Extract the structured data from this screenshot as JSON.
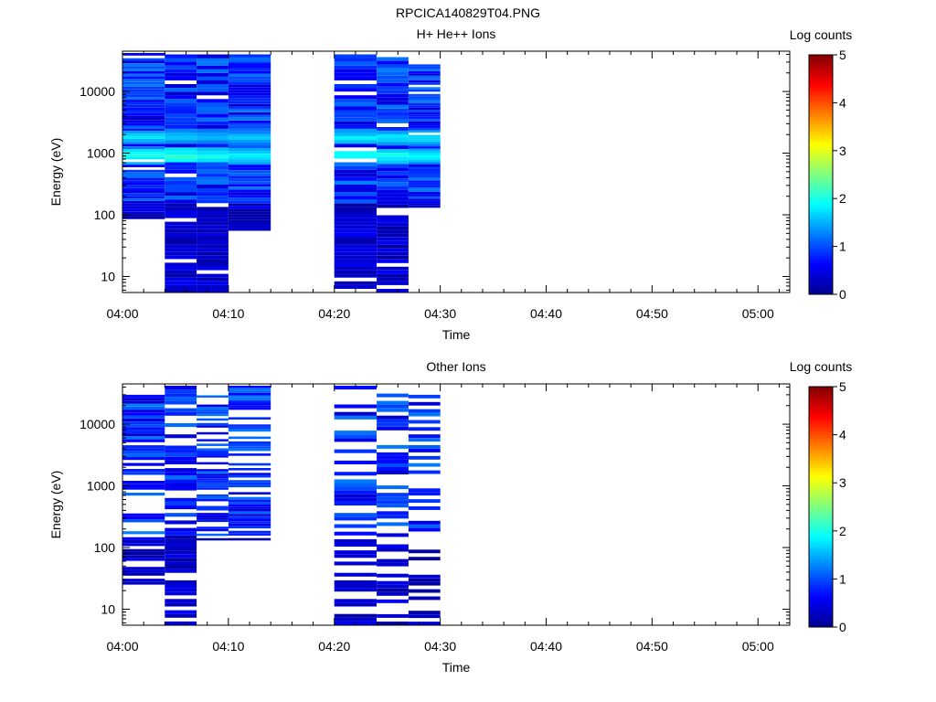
{
  "figure": {
    "title": "RPCICA140829T04.PNG"
  },
  "chart_data": [
    {
      "type": "heatmap",
      "title": "H+ He++ Ions",
      "xlabel": "Time",
      "ylabel": "Energy (eV)",
      "x_range": [
        "04:00",
        "05:03"
      ],
      "x_ticks": [
        "04:00",
        "04:10",
        "04:20",
        "04:30",
        "04:40",
        "04:50",
        "05:00"
      ],
      "y_scale": "log",
      "y_range": [
        5.5,
        45000
      ],
      "y_ticks": [
        "10",
        "100",
        "1000",
        "10000"
      ],
      "colorbar": {
        "label": "Log counts",
        "range": [
          0,
          5
        ],
        "ticks": [
          "0",
          "1",
          "2",
          "3",
          "4",
          "5"
        ]
      },
      "time_bins": [
        {
          "start": "04:00",
          "end": "04:04",
          "data_energy_range": [
            85,
            42000
          ],
          "bands": [
            {
              "energy": 900,
              "value": 1.9
            },
            {
              "energy": 1800,
              "value": 1.6
            },
            {
              "energy": 13000,
              "value": 1.1
            },
            {
              "energy": 110,
              "value": 1.0
            }
          ]
        },
        {
          "start": "04:04",
          "end": "04:07",
          "data_energy_range": [
            5.5,
            40000
          ],
          "bands": [
            {
              "energy": 900,
              "value": 2.0
            },
            {
              "energy": 1800,
              "value": 1.6
            }
          ]
        },
        {
          "start": "04:07",
          "end": "04:10",
          "data_energy_range": [
            5.5,
            40000
          ],
          "bands": [
            {
              "energy": 900,
              "value": 1.9
            },
            {
              "energy": 1800,
              "value": 1.5
            }
          ]
        },
        {
          "start": "04:10",
          "end": "04:14",
          "data_energy_range": [
            55,
            40000
          ],
          "bands": [
            {
              "energy": 900,
              "value": 1.8
            },
            {
              "energy": 1800,
              "value": 1.5
            }
          ]
        },
        {
          "start": "04:20",
          "end": "04:24",
          "data_energy_range": [
            5.5,
            40000
          ],
          "bands": [
            {
              "energy": 900,
              "value": 1.9
            },
            {
              "energy": 1800,
              "value": 1.7
            }
          ]
        },
        {
          "start": "04:24",
          "end": "04:27",
          "data_energy_range": [
            5.5,
            36000
          ],
          "bands": [
            {
              "energy": 900,
              "value": 1.9
            },
            {
              "energy": 1800,
              "value": 1.7
            }
          ]
        },
        {
          "start": "04:27",
          "end": "04:30",
          "data_energy_range": [
            130,
            30000
          ],
          "bands": [
            {
              "energy": 900,
              "value": 1.8
            },
            {
              "energy": 1800,
              "value": 1.7
            }
          ]
        }
      ]
    },
    {
      "type": "heatmap",
      "title": "Other Ions",
      "xlabel": "Time",
      "ylabel": "Energy (eV)",
      "x_range": [
        "04:00",
        "05:03"
      ],
      "x_ticks": [
        "04:00",
        "04:10",
        "04:20",
        "04:30",
        "04:40",
        "04:50",
        "05:00"
      ],
      "y_scale": "log",
      "y_range": [
        5.5,
        45000
      ],
      "y_ticks": [
        "10",
        "100",
        "1000",
        "10000"
      ],
      "colorbar": {
        "label": "Log counts",
        "range": [
          0,
          5
        ],
        "ticks": [
          "0",
          "1",
          "2",
          "3",
          "4",
          "5"
        ]
      },
      "time_bins": [
        {
          "start": "04:00",
          "end": "04:04",
          "data_energy_range": [
            25,
            30000
          ],
          "bands": []
        },
        {
          "start": "04:04",
          "end": "04:07",
          "data_energy_range": [
            5.5,
            42000
          ],
          "bands": [
            {
              "energy": 70,
              "value": 0.6
            }
          ]
        },
        {
          "start": "04:07",
          "end": "04:10",
          "data_energy_range": [
            130,
            32000
          ],
          "bands": []
        },
        {
          "start": "04:10",
          "end": "04:14",
          "data_energy_range": [
            130,
            42000
          ],
          "bands": []
        },
        {
          "start": "04:20",
          "end": "04:24",
          "data_energy_range": [
            5.5,
            42000
          ],
          "bands": [
            {
              "energy": 12000,
              "value": 0.7
            }
          ]
        },
        {
          "start": "04:24",
          "end": "04:27",
          "data_energy_range": [
            5.5,
            36000
          ],
          "bands": [
            {
              "energy": 15,
              "value": 0.6
            }
          ]
        },
        {
          "start": "04:27",
          "end": "04:30",
          "data_energy_range": [
            5.5,
            30000
          ],
          "bands": [
            {
              "energy": 1100,
              "value": 1.1
            },
            {
              "energy": 15,
              "value": 0.6
            }
          ]
        }
      ]
    }
  ]
}
